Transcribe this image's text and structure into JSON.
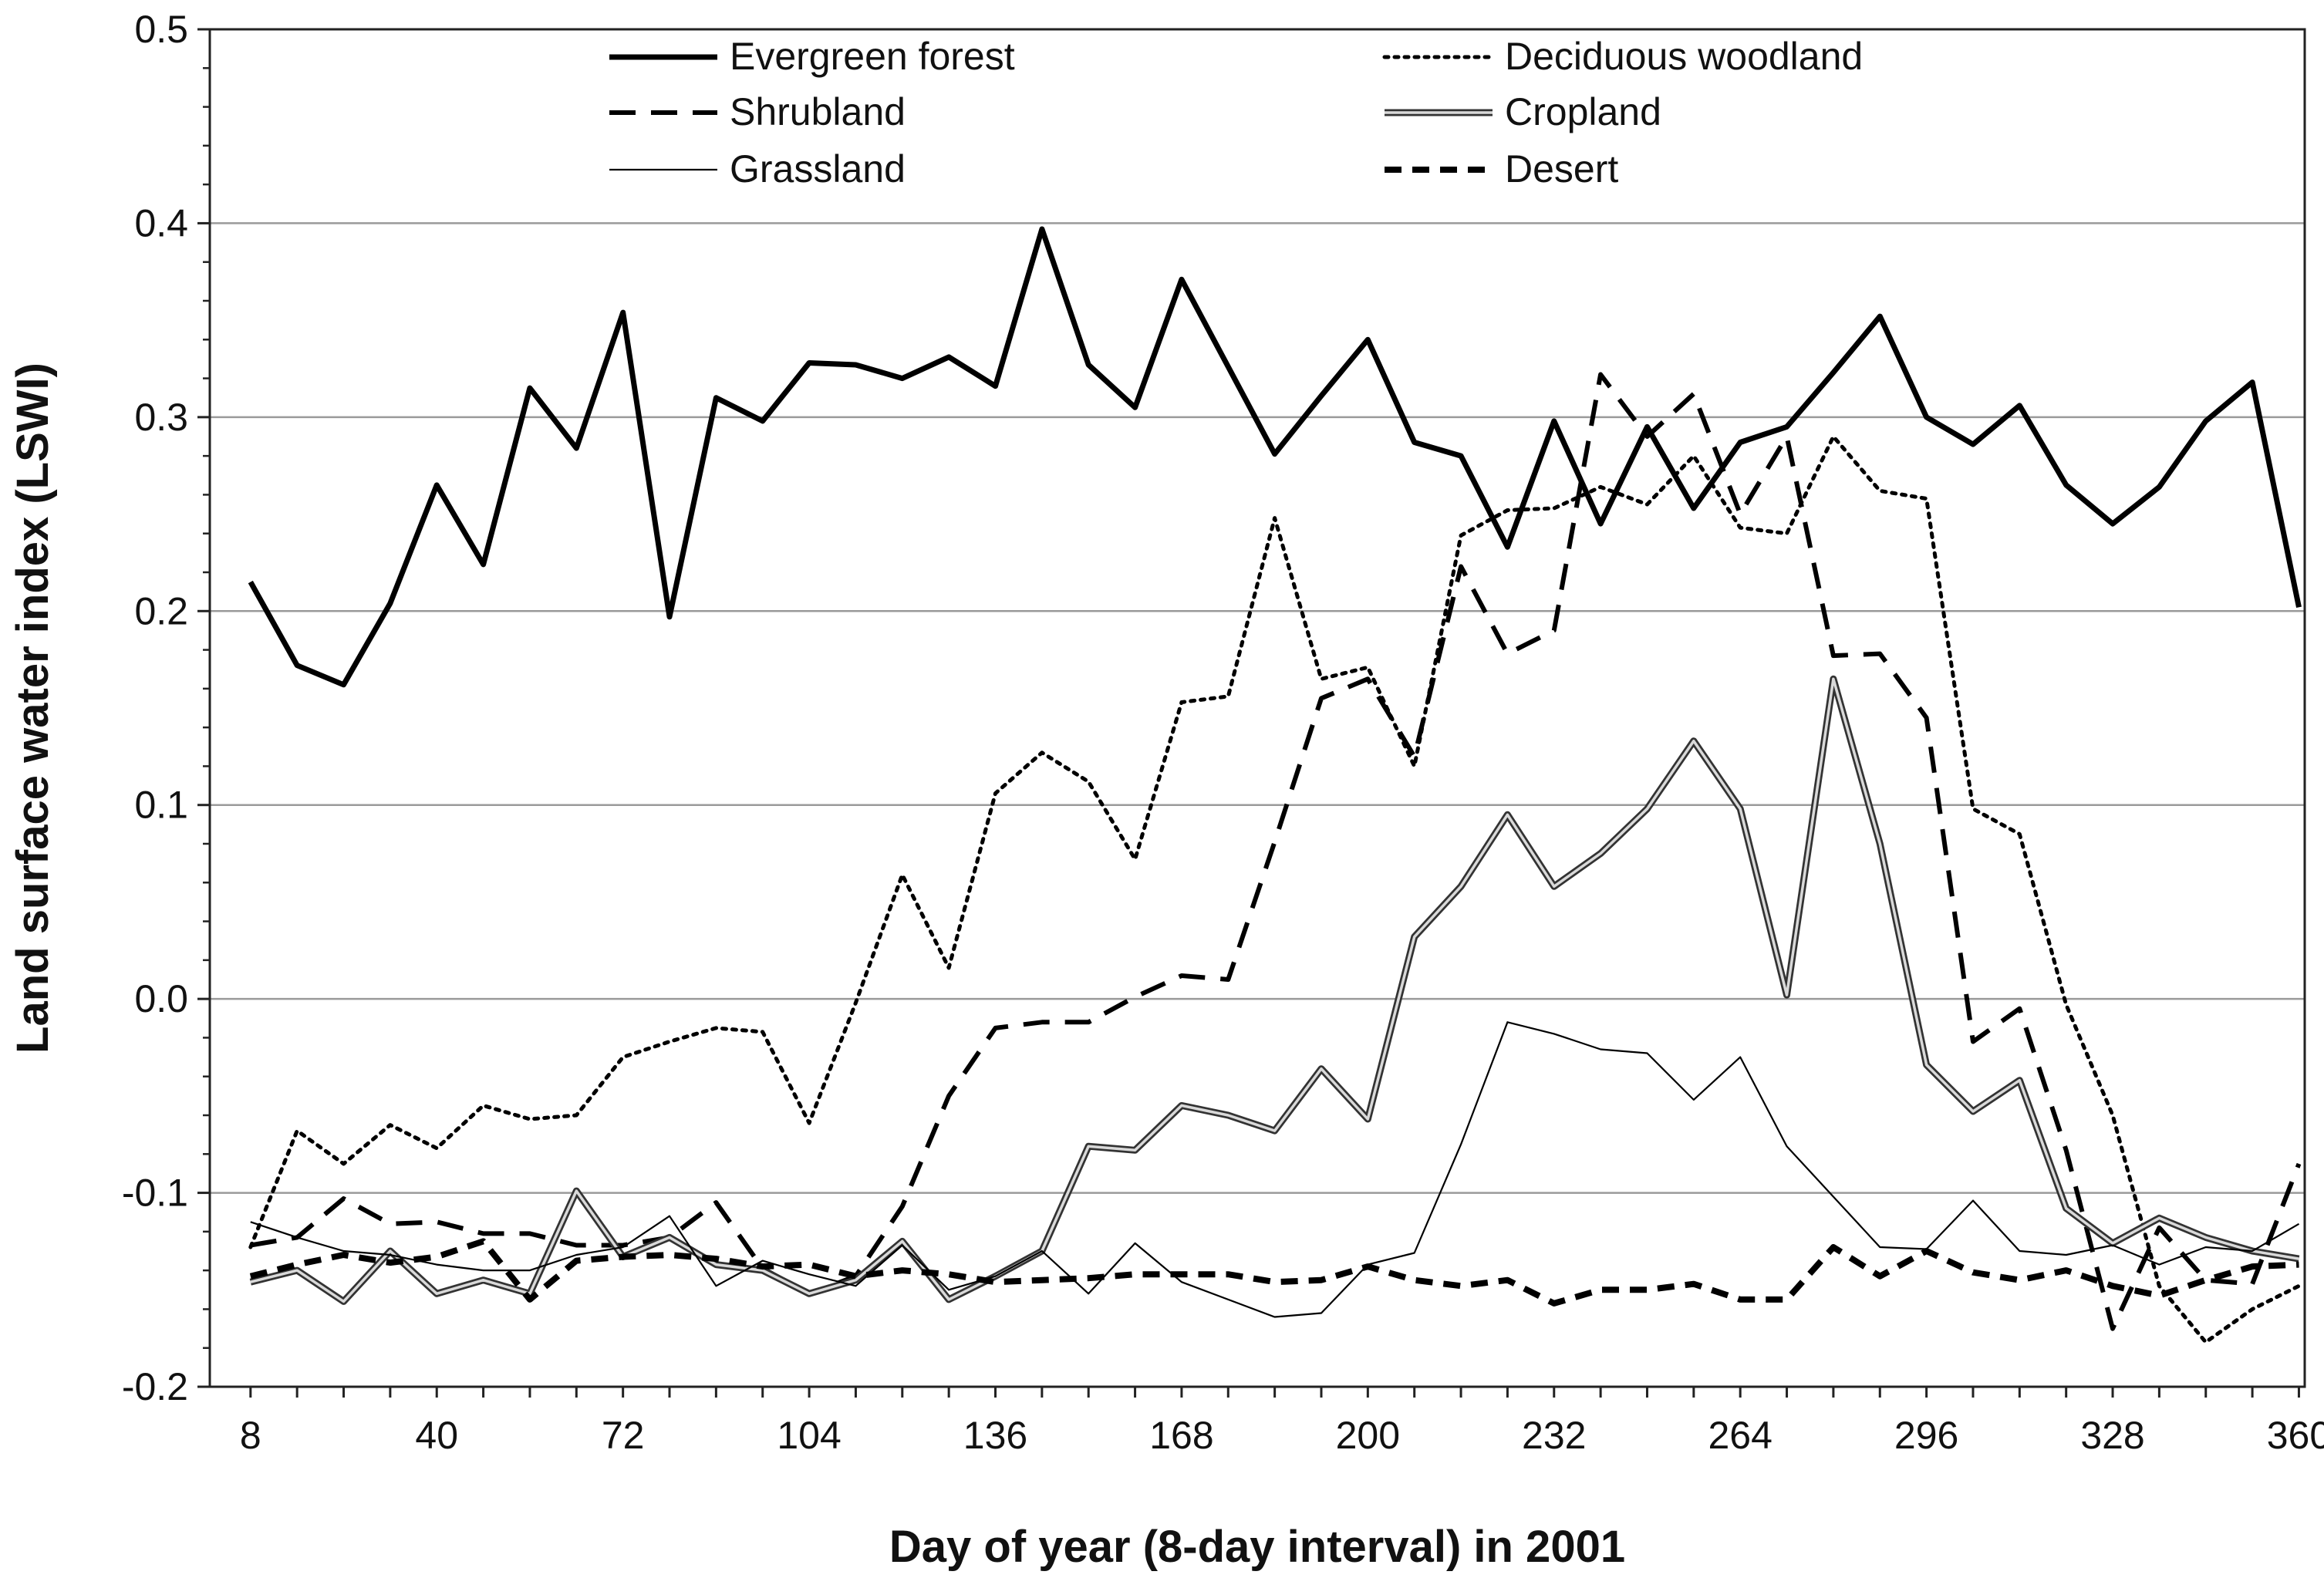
{
  "chart_data": {
    "type": "line",
    "title": "",
    "xlabel": "Day of year (8-day interval) in 2001",
    "ylabel": "Land surface water index (LSWI)",
    "xlim": [
      1,
      361
    ],
    "ylim": [
      -0.2,
      0.5
    ],
    "x_ticks": [
      8,
      40,
      72,
      104,
      136,
      168,
      200,
      232,
      264,
      296,
      328,
      360
    ],
    "x_tick_labels": [
      "8",
      "40",
      "72",
      "104",
      "136",
      "168",
      "200",
      "232",
      "264",
      "296",
      "328",
      "360"
    ],
    "y_ticks": [
      -0.2,
      -0.1,
      0.0,
      0.1,
      0.2,
      0.3,
      0.4,
      0.5
    ],
    "y_tick_labels": [
      "-0.2",
      "-0.1",
      "0.0",
      "0.1",
      "0.2",
      "0.3",
      "0.4",
      "0.5"
    ],
    "grid": "horizontal",
    "legend_position": "top",
    "x": [
      8,
      16,
      24,
      32,
      40,
      48,
      56,
      64,
      72,
      80,
      88,
      96,
      104,
      112,
      120,
      128,
      136,
      144,
      152,
      160,
      168,
      176,
      184,
      192,
      200,
      208,
      216,
      224,
      232,
      240,
      248,
      256,
      264,
      272,
      280,
      288,
      296,
      304,
      312,
      320,
      328,
      336,
      344,
      352,
      360
    ],
    "series": [
      {
        "name": "Evergreen forest",
        "style": "solid-thick",
        "values": [
          0.215,
          0.172,
          0.162,
          0.204,
          0.265,
          0.224,
          0.315,
          0.284,
          0.354,
          0.197,
          0.31,
          0.298,
          0.328,
          0.327,
          0.32,
          0.331,
          0.316,
          0.397,
          0.327,
          0.305,
          0.371,
          0.326,
          0.281,
          0.311,
          0.34,
          0.287,
          0.28,
          0.233,
          0.298,
          0.245,
          0.295,
          0.253,
          0.287,
          0.295,
          0.323,
          0.352,
          0.3,
          0.286,
          0.306,
          0.265,
          0.245,
          0.264,
          0.298,
          0.318,
          0.202
        ]
      },
      {
        "name": "Deciduous woodland",
        "style": "dotted",
        "values": [
          -0.128,
          -0.068,
          -0.085,
          -0.065,
          -0.077,
          -0.055,
          -0.062,
          -0.06,
          -0.03,
          -0.022,
          -0.015,
          -0.017,
          -0.064,
          -0.002,
          0.064,
          0.016,
          0.106,
          0.127,
          0.112,
          0.072,
          0.153,
          0.156,
          0.248,
          0.165,
          0.171,
          0.12,
          0.239,
          0.252,
          0.253,
          0.264,
          0.255,
          0.28,
          0.243,
          0.24,
          0.29,
          0.262,
          0.258,
          0.098,
          0.085,
          -0.003,
          -0.06,
          -0.148,
          -0.177,
          -0.16,
          -0.148
        ]
      },
      {
        "name": "Shrubland",
        "style": "dashed",
        "values": [
          -0.127,
          -0.123,
          -0.103,
          -0.116,
          -0.115,
          -0.121,
          -0.121,
          -0.127,
          -0.127,
          -0.123,
          -0.105,
          -0.139,
          -0.152,
          -0.143,
          -0.107,
          -0.05,
          -0.015,
          -0.012,
          -0.012,
          0.001,
          0.012,
          0.01,
          0.081,
          0.155,
          0.165,
          0.125,
          0.223,
          0.178,
          0.19,
          0.322,
          0.29,
          0.312,
          0.25,
          0.29,
          0.177,
          0.178,
          0.145,
          -0.022,
          -0.005,
          -0.078,
          -0.17,
          -0.118,
          -0.145,
          -0.147,
          -0.085
        ]
      },
      {
        "name": "Cropland",
        "style": "double",
        "values": [
          -0.146,
          -0.14,
          -0.156,
          -0.13,
          -0.152,
          -0.145,
          -0.152,
          -0.099,
          -0.133,
          -0.123,
          -0.137,
          -0.14,
          -0.152,
          -0.145,
          -0.125,
          -0.155,
          -0.143,
          -0.13,
          -0.076,
          -0.078,
          -0.055,
          -0.06,
          -0.068,
          -0.036,
          -0.062,
          0.032,
          0.058,
          0.095,
          0.058,
          0.075,
          0.098,
          0.133,
          0.098,
          0.002,
          0.165,
          0.08,
          -0.034,
          -0.058,
          -0.042,
          -0.108,
          -0.126,
          -0.113,
          -0.123,
          -0.13,
          -0.134
        ]
      },
      {
        "name": "Grassland",
        "style": "thin",
        "values": [
          -0.115,
          -0.123,
          -0.13,
          -0.132,
          -0.137,
          -0.14,
          -0.14,
          -0.132,
          -0.128,
          -0.112,
          -0.148,
          -0.135,
          -0.142,
          -0.148,
          -0.127,
          -0.15,
          -0.143,
          -0.13,
          -0.152,
          -0.126,
          -0.146,
          -0.155,
          -0.164,
          -0.162,
          -0.137,
          -0.131,
          -0.075,
          -0.012,
          -0.018,
          -0.026,
          -0.028,
          -0.052,
          -0.03,
          -0.076,
          -0.102,
          -0.128,
          -0.129,
          -0.104,
          -0.13,
          -0.132,
          -0.127,
          -0.137,
          -0.128,
          -0.13,
          -0.116
        ]
      },
      {
        "name": "Desert",
        "style": "dashed-thick",
        "values": [
          -0.143,
          -0.137,
          -0.132,
          -0.136,
          -0.133,
          -0.125,
          -0.155,
          -0.135,
          -0.133,
          -0.132,
          -0.134,
          -0.138,
          -0.137,
          -0.143,
          -0.14,
          -0.142,
          -0.146,
          -0.145,
          -0.144,
          -0.142,
          -0.142,
          -0.142,
          -0.146,
          -0.145,
          -0.138,
          -0.145,
          -0.148,
          -0.145,
          -0.157,
          -0.15,
          -0.15,
          -0.147,
          -0.155,
          -0.155,
          -0.128,
          -0.143,
          -0.13,
          -0.141,
          -0.145,
          -0.14,
          -0.148,
          -0.153,
          -0.145,
          -0.138,
          -0.137
        ]
      }
    ]
  }
}
